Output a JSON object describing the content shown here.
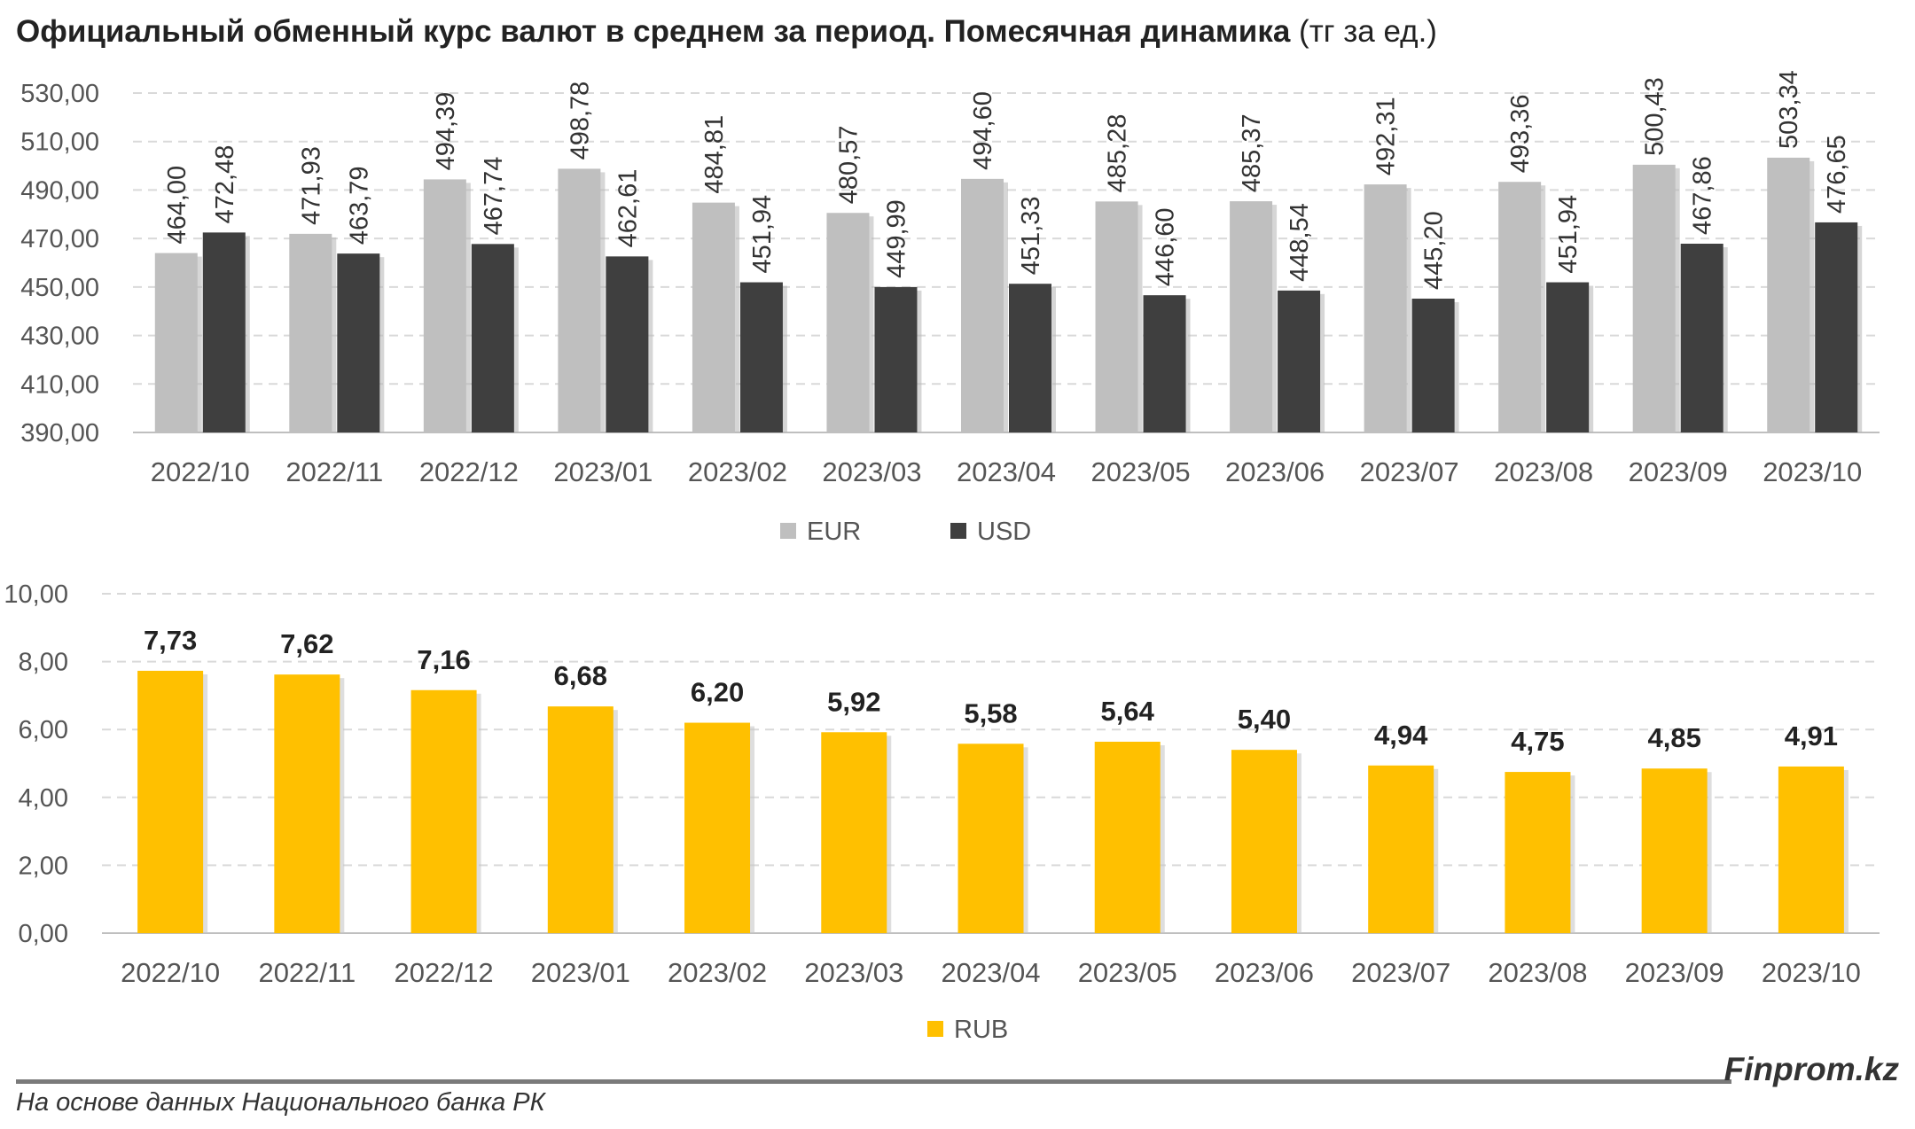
{
  "title": {
    "main": "Официальный обменный курс валют в среднем за период. Помесячная динамика",
    "unit": "(тг за ед.)"
  },
  "colors": {
    "eur": "#bfbfbf",
    "usd": "#3f3f3f",
    "rub": "#ffc000",
    "grid": "#d9d9d9",
    "axis_text": "#555555"
  },
  "chart_data": [
    {
      "type": "bar",
      "categories": [
        "2022/10",
        "2022/11",
        "2022/12",
        "2023/01",
        "2023/02",
        "2023/03",
        "2023/04",
        "2023/05",
        "2023/06",
        "2023/07",
        "2023/08",
        "2023/09",
        "2023/10"
      ],
      "series": [
        {
          "name": "EUR",
          "values": [
            464.0,
            471.93,
            494.39,
            498.78,
            484.81,
            480.57,
            494.6,
            485.28,
            485.37,
            492.31,
            493.36,
            500.43,
            503.34
          ],
          "labels": [
            "464,00",
            "471,93",
            "494,39",
            "498,78",
            "484,81",
            "480,57",
            "494,60",
            "485,28",
            "485,37",
            "492,31",
            "493,36",
            "500,43",
            "503,34"
          ]
        },
        {
          "name": "USD",
          "values": [
            472.48,
            463.79,
            467.74,
            462.61,
            451.94,
            449.99,
            451.33,
            446.6,
            448.54,
            445.2,
            451.94,
            467.86,
            476.65
          ],
          "labels": [
            "472,48",
            "463,79",
            "467,74",
            "462,61",
            "451,94",
            "449,99",
            "451,33",
            "446,60",
            "448,54",
            "445,20",
            "451,94",
            "467,86",
            "476,65"
          ]
        }
      ],
      "ylim": [
        390,
        530
      ],
      "yticks": [
        "390,00",
        "410,00",
        "430,00",
        "450,00",
        "470,00",
        "490,00",
        "510,00",
        "530,00"
      ],
      "grid": true,
      "legend_position": "bottom"
    },
    {
      "type": "bar",
      "categories": [
        "2022/10",
        "2022/11",
        "2022/12",
        "2023/01",
        "2023/02",
        "2023/03",
        "2023/04",
        "2023/05",
        "2023/06",
        "2023/07",
        "2023/08",
        "2023/09",
        "2023/10"
      ],
      "series": [
        {
          "name": "RUB",
          "values": [
            7.73,
            7.62,
            7.16,
            6.68,
            6.2,
            5.92,
            5.58,
            5.64,
            5.4,
            4.94,
            4.75,
            4.85,
            4.91
          ],
          "labels": [
            "7,73",
            "7,62",
            "7,16",
            "6,68",
            "6,20",
            "5,92",
            "5,58",
            "5,64",
            "5,40",
            "4,94",
            "4,75",
            "4,85",
            "4,91"
          ]
        }
      ],
      "ylim": [
        0,
        10
      ],
      "yticks": [
        "0,00",
        "2,00",
        "4,00",
        "6,00",
        "8,00",
        "10,00"
      ],
      "grid": true,
      "legend_position": "bottom"
    }
  ],
  "footer": {
    "source": "На основе данных Национального банка РК",
    "brand": "Finprom.kz"
  }
}
